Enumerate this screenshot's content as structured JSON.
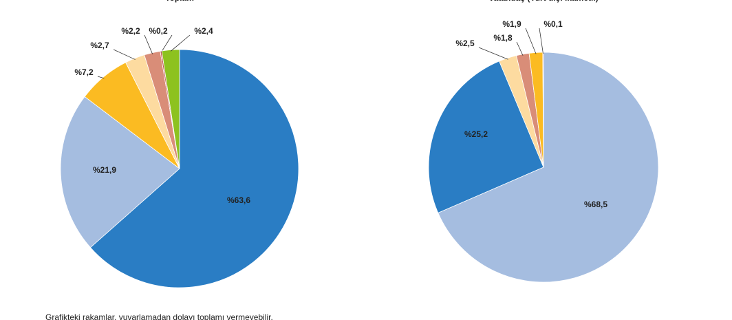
{
  "chart_data": [
    {
      "type": "pie",
      "title": "Toplam",
      "values": [
        63.6,
        21.9,
        7.2,
        2.7,
        2.2,
        0.2,
        2.4
      ],
      "value_labels": [
        "%63,6",
        "%21,9",
        "%7,2",
        "%2,7",
        "%2,2",
        "%0,2",
        "%2,4"
      ],
      "colors": [
        "#2a7dc4",
        "#a5bde0",
        "#fbbb22",
        "#fddba0",
        "#d98d78",
        "#c0504d",
        "#8dc21f"
      ]
    },
    {
      "type": "pie",
      "title": "Vatandaş (Yurt dışı ikametli)",
      "values": [
        68.5,
        25.2,
        2.5,
        1.8,
        1.9,
        0.1
      ],
      "value_labels": [
        "%68,5",
        "%25,2",
        "%2,5",
        "%1,8",
        "%1,9",
        "%0,1"
      ],
      "colors": [
        "#a5bde0",
        "#2a7dc4",
        "#fddba0",
        "#d98d78",
        "#fbbb22",
        "#c0504d"
      ]
    }
  ],
  "footnote": "Grafikteki rakamlar, yuvarlamadan dolayı toplamı vermeyebilir."
}
